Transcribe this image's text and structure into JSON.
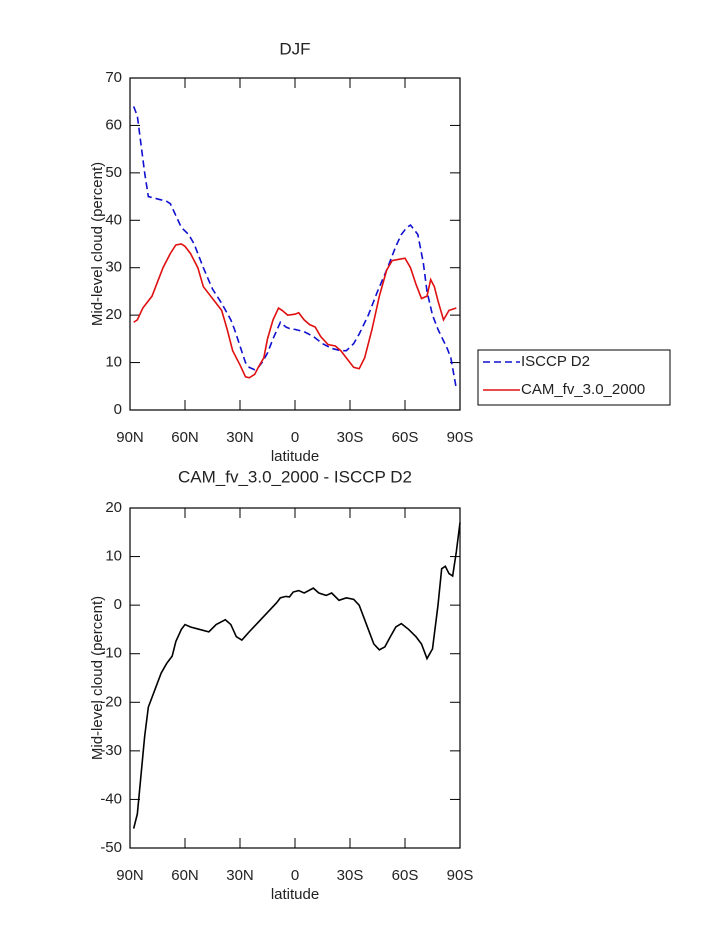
{
  "chart_data": [
    {
      "type": "line",
      "title": "DJF",
      "xlabel": "latitude",
      "ylabel": "Mid-level cloud (percent)",
      "xlim": [
        90,
        -90
      ],
      "xticks": [
        {
          "value": 90,
          "label": "90N"
        },
        {
          "value": 60,
          "label": "60N"
        },
        {
          "value": 30,
          "label": "30N"
        },
        0,
        {
          "value": -30,
          "label": "30S"
        },
        {
          "value": -60,
          "label": "60S"
        },
        {
          "value": -90,
          "label": "90S"
        }
      ],
      "ylim": [
        0,
        70
      ],
      "yticks": [
        0,
        10,
        20,
        30,
        40,
        50,
        60,
        70
      ],
      "legend": "right",
      "series": [
        {
          "name": "ISCCP D2",
          "color": "#1010d0",
          "linestyle": "dashed",
          "x": [
            88,
            86,
            84,
            82,
            80,
            75,
            70,
            68,
            65,
            62,
            58,
            55,
            50,
            45,
            40,
            35,
            33,
            30,
            27,
            25,
            22,
            20,
            18,
            15,
            12,
            8,
            5,
            2,
            0,
            -5,
            -10,
            -15,
            -20,
            -25,
            -28,
            -32,
            -35,
            -40,
            -45,
            -50,
            -55,
            -58,
            -61,
            -63,
            -67,
            -70,
            -72,
            -75,
            -78,
            -83,
            -85,
            -88
          ],
          "values": [
            64,
            62,
            56,
            50,
            45,
            44.5,
            44,
            43.5,
            41,
            38.5,
            37,
            35,
            30,
            25.5,
            22.5,
            19,
            17,
            13.5,
            10,
            9,
            8.5,
            9,
            10,
            12,
            15,
            18.5,
            17.5,
            17,
            17,
            16.5,
            15.5,
            14,
            13,
            12.5,
            12.5,
            14,
            16,
            20,
            25,
            29.5,
            34.5,
            37,
            38.5,
            39,
            37,
            31,
            25,
            20,
            17,
            13,
            11,
            4.5
          ]
        },
        {
          "name": "CAM_fv_3.0_2000",
          "color": "#e01010",
          "linestyle": "solid",
          "x": [
            88,
            86,
            83,
            78,
            75,
            72,
            68,
            65,
            62,
            60,
            57,
            53,
            50,
            45,
            40,
            37,
            34,
            30,
            27,
            25,
            22,
            20,
            17,
            15,
            12,
            9,
            7,
            4,
            0,
            -2,
            -5,
            -8,
            -11,
            -14,
            -18,
            -22,
            -25,
            -28,
            -32,
            -35,
            -38,
            -42,
            -46,
            -50,
            -53,
            -57,
            -60,
            -63,
            -66,
            -69,
            -72,
            -74,
            -76,
            -78,
            -81,
            -84,
            -88
          ],
          "values": [
            18.5,
            19,
            21.5,
            24,
            27,
            30,
            33,
            34.8,
            35,
            34.5,
            33,
            30,
            26,
            23.5,
            21,
            17,
            12.5,
            9.5,
            7,
            6.8,
            7.5,
            9,
            11,
            15,
            19,
            21.5,
            21,
            20,
            20.2,
            20.5,
            19,
            18,
            17.5,
            15.5,
            13.8,
            13.5,
            12.5,
            11,
            9,
            8.7,
            11,
            17,
            24,
            29.5,
            31.5,
            31.8,
            32,
            30,
            26.5,
            23.5,
            24,
            27.5,
            26,
            23,
            19,
            21,
            21.5
          ]
        }
      ]
    },
    {
      "type": "line",
      "title": "CAM_fv_3.0_2000 - ISCCP D2",
      "xlabel": "latitude",
      "ylabel": "Mid-level cloud (percent)",
      "xlim": [
        90,
        -90
      ],
      "xticks": [
        {
          "value": 90,
          "label": "90N"
        },
        {
          "value": 60,
          "label": "60N"
        },
        {
          "value": 30,
          "label": "30N"
        },
        0,
        {
          "value": -30,
          "label": "30S"
        },
        {
          "value": -60,
          "label": "60S"
        },
        {
          "value": -90,
          "label": "90S"
        }
      ],
      "ylim": [
        -50,
        20
      ],
      "yticks": [
        -50,
        -40,
        -30,
        -20,
        -10,
        0,
        10,
        20
      ],
      "series": [
        {
          "color": "#000000",
          "linestyle": "solid",
          "x": [
            88,
            86,
            84,
            82,
            80,
            77,
            73,
            70,
            67,
            65,
            62,
            60,
            57,
            52,
            47,
            43,
            38,
            35,
            32,
            29,
            25,
            20,
            15,
            10,
            8,
            5,
            3,
            1,
            -2,
            -5,
            -10,
            -13,
            -17,
            -20,
            -24,
            -28,
            -32,
            -35,
            -38,
            -41,
            -43,
            -46,
            -49,
            -52,
            -55,
            -58,
            -62,
            -66,
            -69,
            -72,
            -75,
            -78,
            -80,
            -82,
            -84,
            -86,
            -88,
            -90
          ],
          "values": [
            -46,
            -43,
            -35,
            -27,
            -21,
            -18,
            -14,
            -12,
            -10.5,
            -7.5,
            -5,
            -4,
            -4.5,
            -5,
            -5.5,
            -4,
            -3,
            -4,
            -6.5,
            -7.2,
            -5.5,
            -3.5,
            -1.5,
            0.5,
            1.5,
            1.8,
            1.7,
            2.7,
            3,
            2.5,
            3.5,
            2.5,
            2,
            2.5,
            1,
            1.5,
            1.2,
            0,
            -3,
            -6,
            -8,
            -9.2,
            -8.6,
            -6.5,
            -4.5,
            -3.8,
            -5,
            -6.5,
            -8,
            -11,
            -9,
            0,
            7.5,
            8,
            6.5,
            6,
            11,
            17
          ]
        }
      ]
    }
  ]
}
